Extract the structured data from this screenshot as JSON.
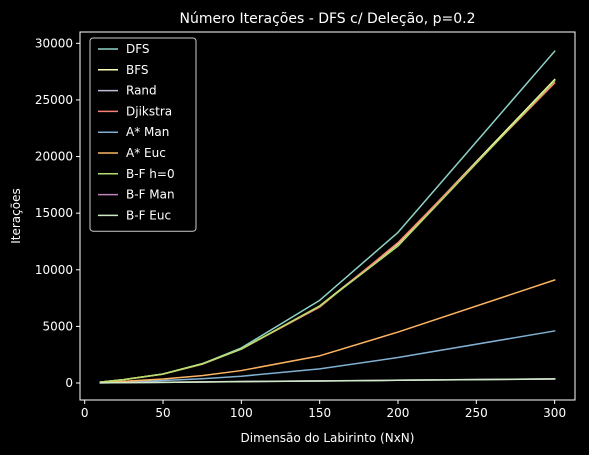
{
  "colors": {
    "background": "#000000",
    "axes": "#ffffff",
    "legend_frame": "#cccccc"
  },
  "chart_data": {
    "type": "line",
    "title": "Número Iterações - DFS c/ Deleção, p=0.2",
    "xlabel": "Dimensão do Labirinto (NxN)",
    "ylabel": "Iterações",
    "xlim": [
      -3,
      313
    ],
    "ylim": [
      -1500,
      31000
    ],
    "xticks": [
      0,
      50,
      100,
      150,
      200,
      250,
      300
    ],
    "yticks": [
      0,
      5000,
      10000,
      15000,
      20000,
      25000,
      30000
    ],
    "x": [
      10,
      25,
      50,
      75,
      100,
      150,
      200,
      300
    ],
    "grid": false,
    "legend_position": "upper left",
    "series": [
      {
        "name": "DFS",
        "color": "#8dd3c7",
        "values": [
          80,
          300,
          800,
          1700,
          3100,
          7300,
          13300,
          29300
        ]
      },
      {
        "name": "BFS",
        "color": "#feffb3",
        "values": [
          80,
          300,
          800,
          1700,
          3000,
          6800,
          12300,
          26800
        ]
      },
      {
        "name": "Rand",
        "color": "#bfbbd9",
        "values": [
          20,
          40,
          70,
          100,
          130,
          190,
          250,
          370
        ]
      },
      {
        "name": "Djikstra",
        "color": "#fa8174",
        "values": [
          80,
          300,
          780,
          1650,
          3000,
          6700,
          12400,
          26500
        ]
      },
      {
        "name": "A* Man",
        "color": "#81b1d2",
        "values": [
          30,
          100,
          220,
          380,
          600,
          1250,
          2250,
          4600
        ]
      },
      {
        "name": "A* Euc",
        "color": "#fdb462",
        "values": [
          40,
          150,
          350,
          650,
          1100,
          2400,
          4500,
          9100
        ]
      },
      {
        "name": "B-F h=0",
        "color": "#b3de69",
        "values": [
          80,
          300,
          790,
          1680,
          3000,
          6800,
          12100,
          26700
        ]
      },
      {
        "name": "B-F Man",
        "color": "#bc82bd",
        "values": [
          15,
          35,
          60,
          90,
          120,
          180,
          240,
          350
        ]
      },
      {
        "name": "B-F Euc",
        "color": "#ccebc4",
        "values": [
          15,
          35,
          60,
          90,
          120,
          180,
          240,
          360
        ]
      }
    ]
  }
}
